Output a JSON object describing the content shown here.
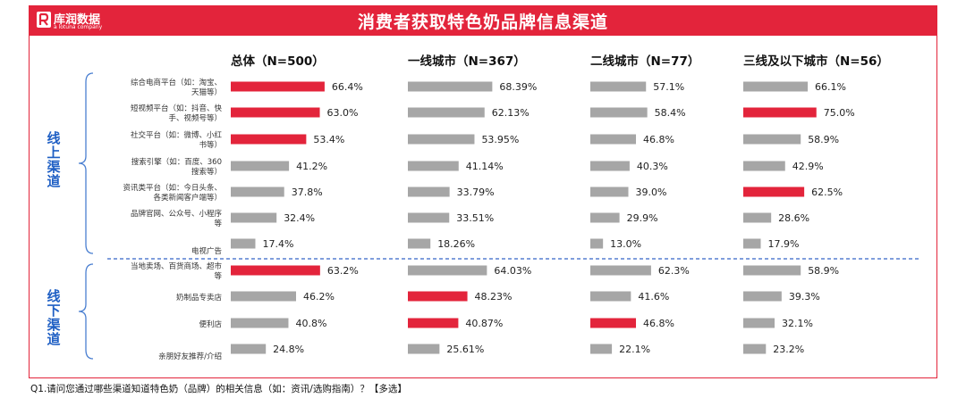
{
  "brand": {
    "name": "库润数据",
    "tagline": "a lotuna company"
  },
  "title": "消费者获取特色奶品牌信息渠道",
  "footnote": "Q1.请问您通过哪些渠道知道特色奶（品牌）的相关信息（如：资讯/选购指南）？【多选】",
  "colors": {
    "accent": "#e3243b",
    "bar": "#a6a6a6",
    "group_label": "#1f5fc4",
    "brace": "#4a7fd1",
    "divider": "#3563c7"
  },
  "chart_data": {
    "type": "bar",
    "orientation": "horizontal",
    "groups": [
      {
        "label": "线上渠道",
        "categories": [
          0,
          1,
          2,
          3,
          4,
          5,
          6
        ]
      },
      {
        "label": "线下渠道",
        "categories": [
          7,
          8,
          9,
          10
        ]
      }
    ],
    "categories": [
      [
        "综合电商平台（如：淘宝、",
        "天猫等）"
      ],
      [
        "短视频平台（如：抖音、快",
        "手、视频号等）"
      ],
      [
        "社交平台（如：微博、小红",
        "书等）"
      ],
      [
        "搜索引擎（如：百度、360",
        "搜索等）"
      ],
      [
        "资讯类平台（如：今日头条、",
        "各类新闻客户端等）"
      ],
      [
        "品牌官网、公众号、小程序",
        "等"
      ],
      [
        "电视广告"
      ],
      [
        "当地卖场、百货商场、超市",
        "等"
      ],
      [
        "奶制品专卖店"
      ],
      [
        "便利店"
      ],
      [
        "亲朋好友推荐/介绍"
      ]
    ],
    "series": [
      {
        "name": "总体（N=500）",
        "values": [
          66.4,
          63.0,
          53.4,
          41.2,
          37.8,
          32.4,
          17.4,
          63.2,
          46.2,
          40.8,
          24.8
        ],
        "labels": [
          "66.4%",
          "63.0%",
          "53.4%",
          "41.2%",
          "37.8%",
          "32.4%",
          "17.4%",
          "63.2%",
          "46.2%",
          "40.8%",
          "24.8%"
        ],
        "highlight": [
          true,
          true,
          true,
          false,
          false,
          false,
          false,
          true,
          false,
          false,
          false
        ]
      },
      {
        "name": "一线城市（N=367）",
        "values": [
          68.39,
          62.13,
          53.95,
          41.14,
          33.79,
          33.51,
          18.26,
          64.03,
          48.23,
          40.87,
          25.61
        ],
        "labels": [
          "68.39%",
          "62.13%",
          "53.95%",
          "41.14%",
          "33.79%",
          "33.51%",
          "18.26%",
          "64.03%",
          "48.23%",
          "40.87%",
          "25.61%"
        ],
        "highlight": [
          false,
          false,
          false,
          false,
          false,
          false,
          false,
          false,
          true,
          true,
          false
        ]
      },
      {
        "name": "二线城市（N=77）",
        "values": [
          57.1,
          58.4,
          46.8,
          40.3,
          39.0,
          29.9,
          13.0,
          62.3,
          41.6,
          46.8,
          22.1
        ],
        "labels": [
          "57.1%",
          "58.4%",
          "46.8%",
          "40.3%",
          "39.0%",
          "29.9%",
          "13.0%",
          "62.3%",
          "41.6%",
          "46.8%",
          "22.1%"
        ],
        "highlight": [
          false,
          false,
          false,
          false,
          false,
          false,
          false,
          false,
          false,
          true,
          false
        ]
      },
      {
        "name": "三线及以下城市（N=56）",
        "values": [
          66.1,
          75.0,
          58.9,
          42.9,
          62.5,
          28.6,
          17.9,
          58.9,
          39.3,
          32.1,
          23.2
        ],
        "labels": [
          "66.1%",
          "75.0%",
          "58.9%",
          "42.9%",
          "62.5%",
          "28.6%",
          "17.9%",
          "58.9%",
          "39.3%",
          "32.1%",
          "23.2%"
        ],
        "highlight": [
          false,
          true,
          false,
          false,
          true,
          false,
          false,
          false,
          false,
          false,
          false
        ]
      }
    ]
  }
}
